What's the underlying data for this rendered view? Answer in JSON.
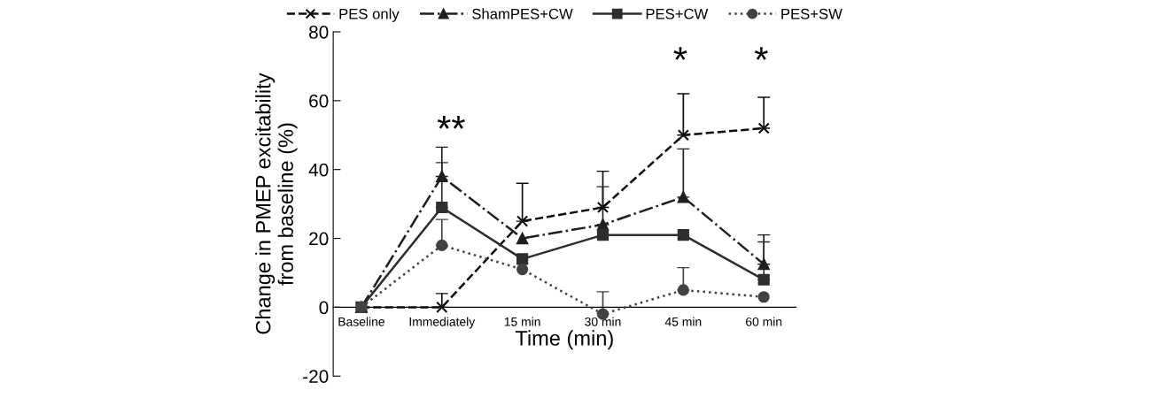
{
  "chart_data": {
    "type": "line",
    "xlabel": "Time (min)",
    "ylabel": "Change in PMEP excitability\nfrom baseline (%)",
    "categories": [
      "Baseline",
      "Immediately",
      "15 min",
      "30 min",
      "45 min",
      "60 min"
    ],
    "series": [
      {
        "name": "PES only",
        "color": "#0d0d0d",
        "marker": "cross",
        "line_style": "dashed",
        "values": [
          0,
          0,
          25,
          29,
          50,
          52
        ],
        "errors": [
          null,
          [
            0,
            4
          ],
          [
            25,
            36
          ],
          [
            29,
            39.5
          ],
          [
            50,
            62
          ],
          [
            52,
            61
          ]
        ]
      },
      {
        "name": "ShamPES+CW",
        "color": "#1f1f1f",
        "marker": "triangle",
        "line_style": "dashdot",
        "values": [
          0,
          38,
          20,
          24,
          32,
          12.5
        ],
        "errors": [
          null,
          [
            38,
            46.5
          ],
          null,
          [
            24,
            35
          ],
          [
            32,
            46
          ],
          [
            12.5,
            21
          ]
        ]
      },
      {
        "name": "PES+CW",
        "color": "#2e2e2e",
        "marker": "square",
        "line_style": "solid",
        "values": [
          0,
          29,
          14,
          21,
          21,
          8
        ],
        "errors": [
          null,
          [
            29,
            42
          ],
          null,
          null,
          null,
          [
            8,
            19
          ]
        ]
      },
      {
        "name": "PES+SW",
        "color": "#424242",
        "marker": "circle",
        "line_style": "dotted",
        "values": [
          0,
          18,
          11,
          -2,
          5,
          3
        ],
        "errors": [
          null,
          [
            18,
            25.5
          ],
          null,
          [
            -2,
            4.5
          ],
          [
            5,
            11.5
          ],
          null
        ]
      }
    ],
    "ylim": [
      -20,
      80
    ],
    "yticks": [
      -20,
      0,
      20,
      40,
      60,
      80
    ],
    "grid": false,
    "legend": "top",
    "annotations": [
      "**",
      "*",
      "*"
    ]
  }
}
